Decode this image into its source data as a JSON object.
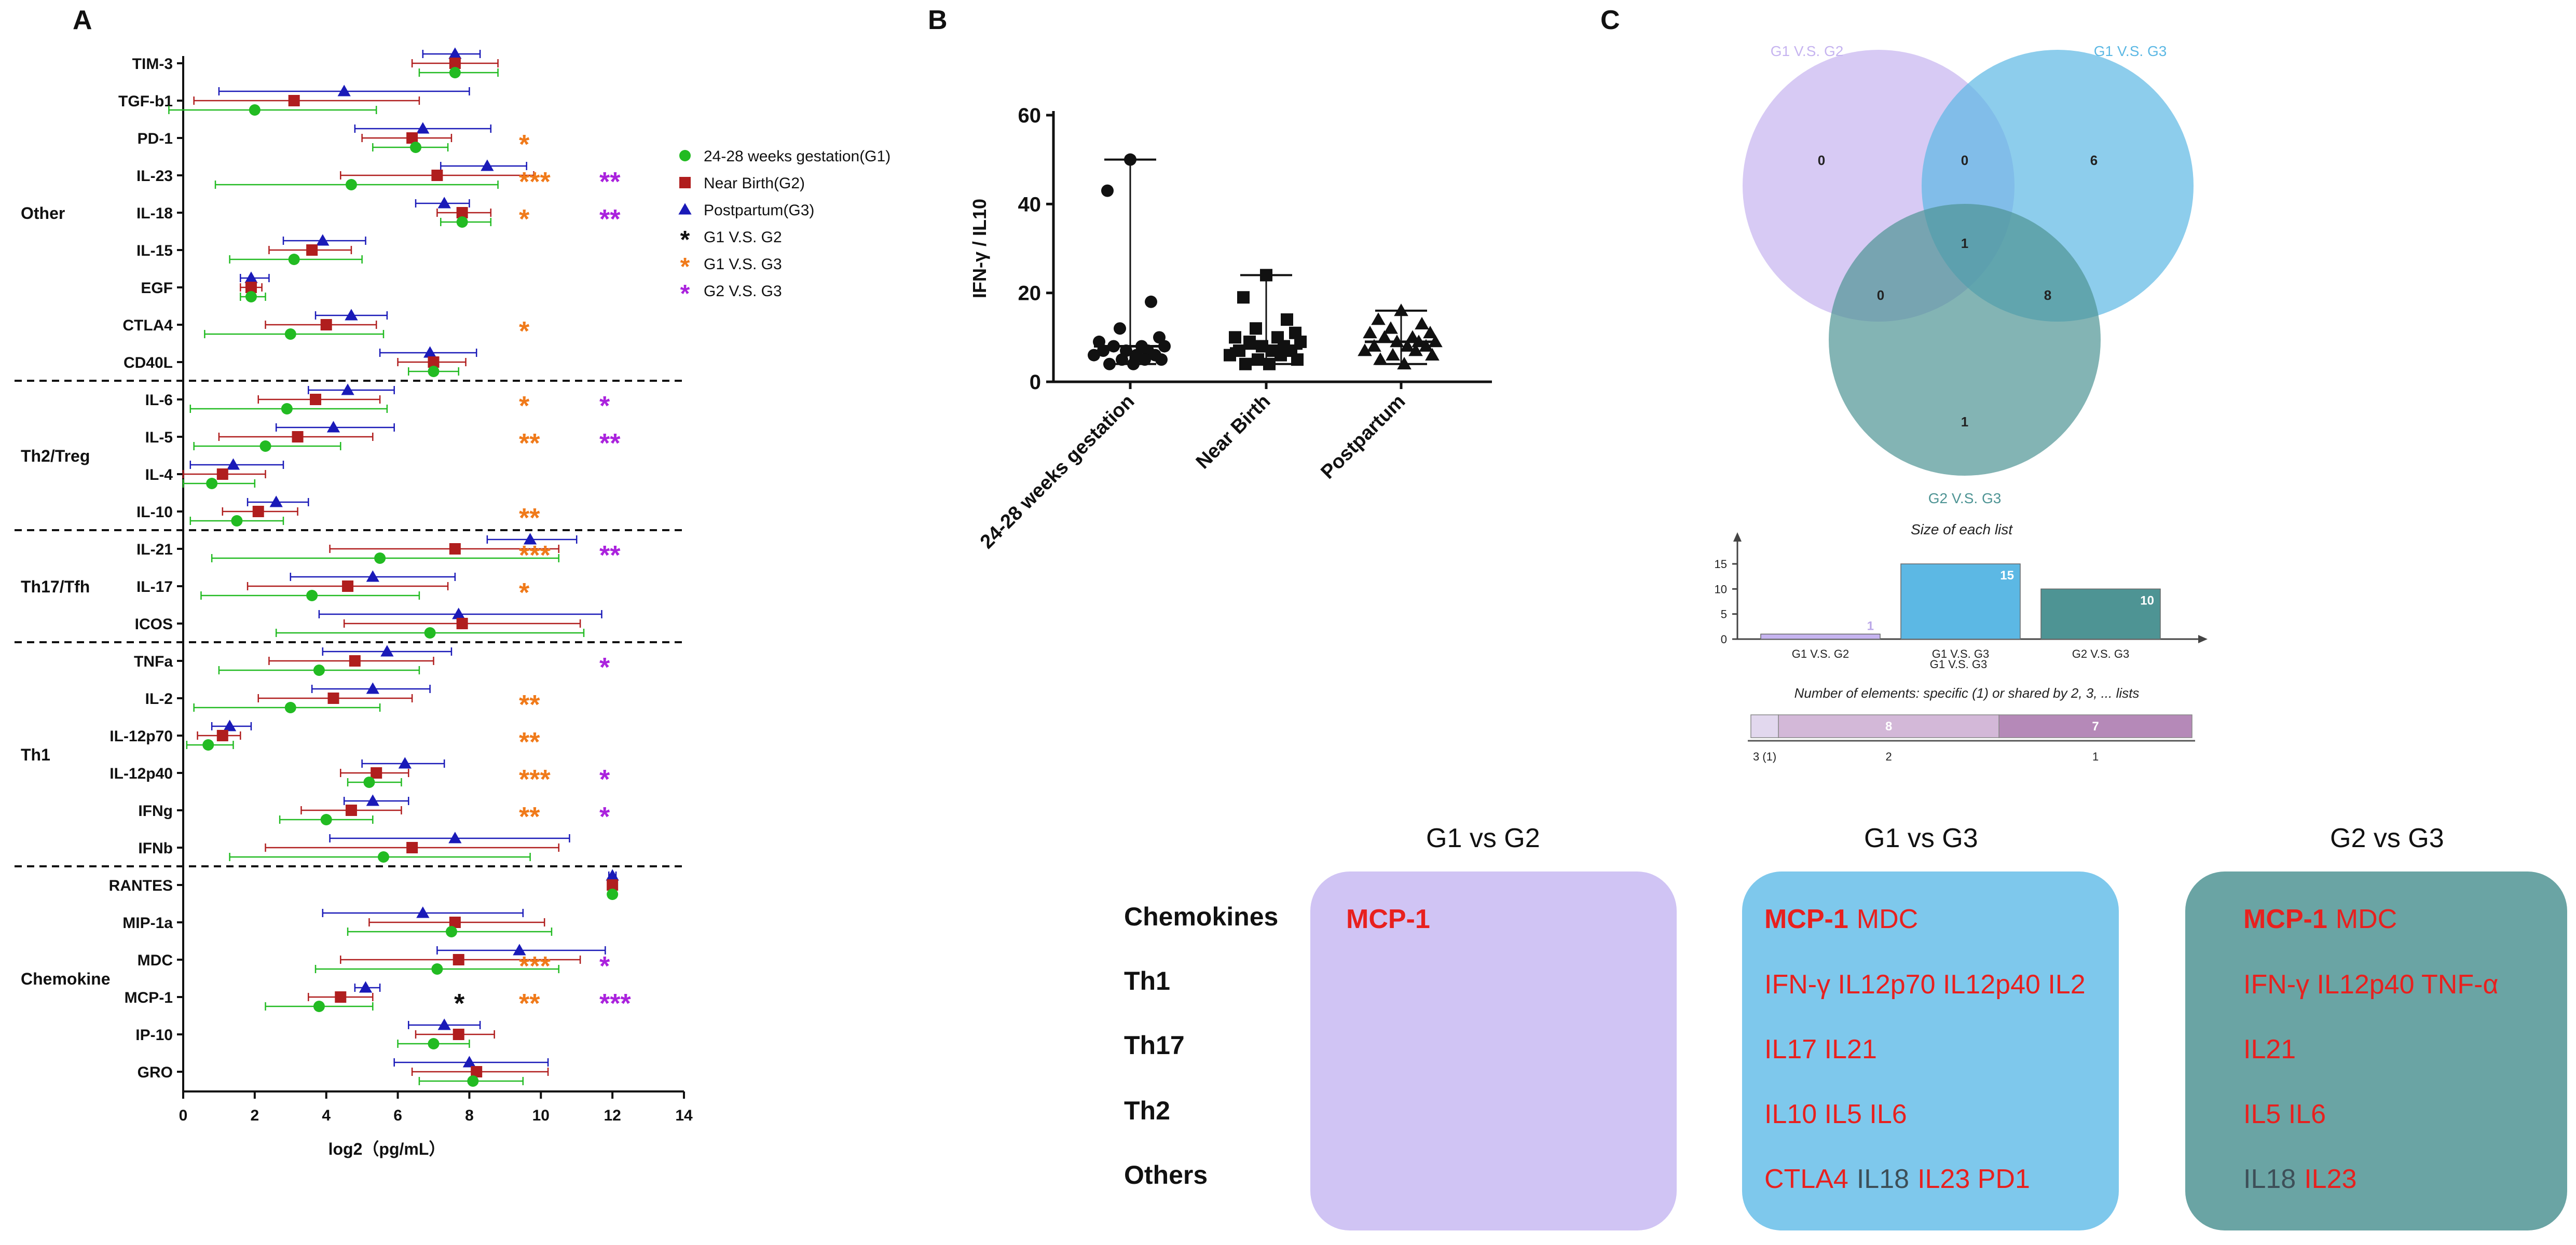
{
  "colors": {
    "g1": "#22bb22",
    "g2": "#b01e1e",
    "g3": "#1a1ab8",
    "star_g1g2": "#111111",
    "star_g1g3": "#f07a1a",
    "star_g2g3": "#aa22dd",
    "venn_g1g2": "#c6b4f0",
    "venn_g1g3": "#5cb8e4",
    "venn_g2g3": "#4e9494",
    "box_g1g2": "#d0c4f4",
    "box_g1g3": "#7ec8ec",
    "box_g2g3": "#6aa4a4",
    "red_text": "#e8201e",
    "grey_text": "#3d4f58"
  },
  "panelA": {
    "label": "A",
    "xlabel": "log2（pg/mL）",
    "xlim": [
      0,
      14
    ],
    "xticks": [
      0,
      2,
      4,
      6,
      8,
      10,
      12,
      14
    ],
    "legend": [
      {
        "marker": "circle",
        "label": "24-28 weeks gestation(G1)"
      },
      {
        "marker": "square",
        "label": "Near Birth(G2)"
      },
      {
        "marker": "triangle",
        "label": "Postpartum(G3)"
      },
      {
        "star": "*",
        "star_color": "star_g1g2",
        "label": "G1 V.S. G2"
      },
      {
        "star": "*",
        "star_color": "star_g1g3",
        "label": "G1 V.S. G3"
      },
      {
        "star": "*",
        "star_color": "star_g2g3",
        "label": "G2 V.S. G3"
      }
    ],
    "groups": [
      {
        "name": "Other",
        "start": 0,
        "end": 8
      },
      {
        "name": "Th2/Treg",
        "start": 9,
        "end": 12
      },
      {
        "name": "Th17/Tfh",
        "start": 13,
        "end": 15
      },
      {
        "name": "Th1",
        "start": 16,
        "end": 21
      },
      {
        "name": "Chemokine",
        "start": 22,
        "end": 27
      }
    ],
    "rows": [
      {
        "label": "TIM-3",
        "g1": [
          7.6,
          6.6,
          8.8
        ],
        "g2": [
          7.6,
          6.4,
          8.8
        ],
        "g3": [
          7.6,
          6.7,
          8.3
        ],
        "stars": []
      },
      {
        "label": "TGF-b1",
        "g1": [
          2.0,
          -0.4,
          5.4
        ],
        "g2": [
          3.1,
          0.3,
          6.6
        ],
        "g3": [
          4.5,
          1.0,
          8.0
        ],
        "stars": []
      },
      {
        "label": "PD-1",
        "g1": [
          6.5,
          5.3,
          7.4
        ],
        "g2": [
          6.4,
          5.0,
          7.5
        ],
        "g3": [
          6.7,
          4.8,
          8.6
        ],
        "stars": [
          {
            "text": "*",
            "group": "g1g3"
          }
        ]
      },
      {
        "label": "IL-23",
        "g1": [
          4.7,
          0.9,
          8.8
        ],
        "g2": [
          7.1,
          4.4,
          9.8
        ],
        "g3": [
          8.5,
          7.2,
          9.6
        ],
        "stars": [
          {
            "text": "***",
            "group": "g1g3"
          },
          {
            "text": "**",
            "group": "g2g3"
          }
        ]
      },
      {
        "label": "IL-18",
        "g1": [
          7.8,
          7.2,
          8.6
        ],
        "g2": [
          7.8,
          7.1,
          8.6
        ],
        "g3": [
          7.3,
          6.5,
          8.0
        ],
        "stars": [
          {
            "text": "*",
            "group": "g1g3"
          },
          {
            "text": "**",
            "group": "g2g3"
          }
        ]
      },
      {
        "label": "IL-15",
        "g1": [
          3.1,
          1.3,
          5.0
        ],
        "g2": [
          3.6,
          2.4,
          4.7
        ],
        "g3": [
          3.9,
          2.8,
          5.1
        ],
        "stars": []
      },
      {
        "label": "EGF",
        "g1": [
          1.9,
          1.6,
          2.3
        ],
        "g2": [
          1.9,
          1.6,
          2.2
        ],
        "g3": [
          1.9,
          1.6,
          2.4
        ],
        "stars": []
      },
      {
        "label": "CTLA4",
        "g1": [
          3.0,
          0.6,
          5.6
        ],
        "g2": [
          4.0,
          2.3,
          5.4
        ],
        "g3": [
          4.7,
          3.7,
          5.7
        ],
        "stars": [
          {
            "text": "*",
            "group": "g1g3"
          }
        ]
      },
      {
        "label": "CD40L",
        "g1": [
          7.0,
          6.3,
          7.7
        ],
        "g2": [
          7.0,
          6.0,
          7.9
        ],
        "g3": [
          6.9,
          5.5,
          8.2
        ],
        "stars": []
      },
      {
        "label": "IL-6",
        "g1": [
          2.9,
          0.2,
          5.7
        ],
        "g2": [
          3.7,
          2.1,
          5.5
        ],
        "g3": [
          4.6,
          3.5,
          5.9
        ],
        "stars": [
          {
            "text": "*",
            "group": "g1g3"
          },
          {
            "text": "*",
            "group": "g2g3"
          }
        ]
      },
      {
        "label": "IL-5",
        "g1": [
          2.3,
          0.3,
          4.4
        ],
        "g2": [
          3.2,
          1.0,
          5.3
        ],
        "g3": [
          4.2,
          2.6,
          5.9
        ],
        "stars": [
          {
            "text": "**",
            "group": "g1g3"
          },
          {
            "text": "**",
            "group": "g2g3"
          }
        ]
      },
      {
        "label": "IL-4",
        "g1": [
          0.8,
          0.0,
          2.0
        ],
        "g2": [
          1.1,
          0.0,
          2.3
        ],
        "g3": [
          1.4,
          0.2,
          2.8
        ],
        "stars": []
      },
      {
        "label": "IL-10",
        "g1": [
          1.5,
          0.2,
          2.8
        ],
        "g2": [
          2.1,
          1.1,
          3.2
        ],
        "g3": [
          2.6,
          1.8,
          3.5
        ],
        "stars": [
          {
            "text": "**",
            "group": "g1g3"
          }
        ]
      },
      {
        "label": "IL-21",
        "g1": [
          5.5,
          0.8,
          10.5
        ],
        "g2": [
          7.6,
          4.1,
          10.5
        ],
        "g3": [
          9.7,
          8.5,
          11.0
        ],
        "stars": [
          {
            "text": "***",
            "group": "g1g3"
          },
          {
            "text": "**",
            "group": "g2g3"
          }
        ]
      },
      {
        "label": "IL-17",
        "g1": [
          3.6,
          0.5,
          6.6
        ],
        "g2": [
          4.6,
          1.8,
          7.4
        ],
        "g3": [
          5.3,
          3.0,
          7.6
        ],
        "stars": [
          {
            "text": "*",
            "group": "g1g3"
          }
        ]
      },
      {
        "label": "ICOS",
        "g1": [
          6.9,
          2.6,
          11.2
        ],
        "g2": [
          7.8,
          4.5,
          11.1
        ],
        "g3": [
          7.7,
          3.8,
          11.7
        ],
        "stars": []
      },
      {
        "label": "TNFa",
        "g1": [
          3.8,
          1.0,
          6.6
        ],
        "g2": [
          4.8,
          2.4,
          7.0
        ],
        "g3": [
          5.7,
          3.9,
          7.5
        ],
        "stars": [
          {
            "text": "*",
            "group": "g2g3"
          }
        ]
      },
      {
        "label": "IL-2",
        "g1": [
          3.0,
          0.3,
          5.5
        ],
        "g2": [
          4.2,
          2.1,
          6.4
        ],
        "g3": [
          5.3,
          3.6,
          6.9
        ],
        "stars": [
          {
            "text": "**",
            "group": "g1g3"
          }
        ]
      },
      {
        "label": "IL-12p70",
        "g1": [
          0.7,
          0.1,
          1.4
        ],
        "g2": [
          1.1,
          0.4,
          1.6
        ],
        "g3": [
          1.3,
          0.8,
          1.9
        ],
        "stars": [
          {
            "text": "**",
            "group": "g1g3"
          }
        ]
      },
      {
        "label": "IL-12p40",
        "g1": [
          5.2,
          4.6,
          6.1
        ],
        "g2": [
          5.4,
          4.4,
          6.3
        ],
        "g3": [
          6.2,
          5.0,
          7.3
        ],
        "stars": [
          {
            "text": "***",
            "group": "g1g3"
          },
          {
            "text": "*",
            "group": "g2g3"
          }
        ]
      },
      {
        "label": "IFNg",
        "g1": [
          4.0,
          2.7,
          5.3
        ],
        "g2": [
          4.7,
          3.3,
          6.1
        ],
        "g3": [
          5.3,
          4.5,
          6.3
        ],
        "stars": [
          {
            "text": "**",
            "group": "g1g3"
          },
          {
            "text": "*",
            "group": "g2g3"
          }
        ]
      },
      {
        "label": "IFNb",
        "g1": [
          5.6,
          1.3,
          9.7
        ],
        "g2": [
          6.4,
          2.3,
          10.5
        ],
        "g3": [
          7.6,
          4.1,
          10.8
        ],
        "stars": []
      },
      {
        "label": "RANTES",
        "g1": [
          12.0,
          11.9,
          12.1
        ],
        "g2": [
          12.0,
          11.9,
          12.1
        ],
        "g3": [
          12.0,
          11.9,
          12.1
        ],
        "stars": []
      },
      {
        "label": "MIP-1a",
        "g1": [
          7.5,
          4.6,
          10.3
        ],
        "g2": [
          7.6,
          5.2,
          10.1
        ],
        "g3": [
          6.7,
          3.9,
          9.5
        ],
        "stars": []
      },
      {
        "label": "MDC",
        "g1": [
          7.1,
          3.7,
          10.5
        ],
        "g2": [
          7.7,
          4.4,
          11.1
        ],
        "g3": [
          9.4,
          7.1,
          11.8
        ],
        "stars": [
          {
            "text": "***",
            "group": "g1g3"
          },
          {
            "text": "*",
            "group": "g2g3"
          }
        ]
      },
      {
        "label": "MCP-1",
        "g1": [
          3.8,
          2.3,
          5.3
        ],
        "g2": [
          4.4,
          3.5,
          5.3
        ],
        "g3": [
          5.1,
          4.8,
          5.5
        ],
        "stars": [
          {
            "text": "*",
            "group": "g1g2"
          },
          {
            "text": "**",
            "group": "g1g3"
          },
          {
            "text": "***",
            "group": "g2g3"
          }
        ]
      },
      {
        "label": "IP-10",
        "g1": [
          7.0,
          6.0,
          8.0
        ],
        "g2": [
          7.7,
          6.5,
          8.7
        ],
        "g3": [
          7.3,
          6.3,
          8.3
        ],
        "stars": []
      },
      {
        "label": "GRO",
        "g1": [
          8.1,
          6.6,
          9.5
        ],
        "g2": [
          8.2,
          6.4,
          10.2
        ],
        "g3": [
          8.0,
          5.9,
          10.2
        ],
        "stars": []
      }
    ]
  },
  "panelB": {
    "label": "B",
    "ylabel": "IFN-γ / IL10",
    "ylim": [
      0,
      60
    ],
    "yticks": [
      0,
      20,
      40,
      60
    ],
    "groups": [
      {
        "name": "24-28 weeks gestation",
        "marker": "circle",
        "median": 8,
        "min": 4,
        "max": 50,
        "points": [
          50,
          43,
          18,
          12,
          10,
          9,
          8,
          8,
          8,
          7,
          7,
          7,
          6,
          6,
          6,
          5,
          5,
          5,
          4,
          4
        ]
      },
      {
        "name": "Near Birth",
        "marker": "square",
        "median": 7.5,
        "min": 4,
        "max": 24,
        "points": [
          24,
          19,
          14,
          12,
          11,
          10,
          10,
          9,
          9,
          8,
          8,
          7,
          7,
          7,
          6,
          6,
          5,
          5,
          4,
          4
        ]
      },
      {
        "name": "Postpartum",
        "marker": "triangle",
        "median": 9,
        "min": 4,
        "max": 16,
        "points": [
          16,
          14,
          13,
          12,
          11,
          11,
          10,
          10,
          9,
          9,
          9,
          8,
          8,
          8,
          7,
          7,
          6,
          6,
          5,
          4
        ]
      }
    ]
  },
  "panelC": {
    "label": "C",
    "venn": {
      "sets": [
        {
          "name": "G1 V.S. G2",
          "color": "venn_g1g2"
        },
        {
          "name": "G1 V.S. G3",
          "color": "venn_g1g3"
        },
        {
          "name": "G2 V.S. G3",
          "color": "venn_g2g3"
        }
      ],
      "counts": {
        "only_g1g2": 0,
        "g1g2_and_g1g3": 0,
        "only_g1g3": 6,
        "all_three": 1,
        "g1g2_and_g2g3": 0,
        "g1g3_and_g2g3": 8,
        "only_g2g3": 1
      }
    },
    "size_chart": {
      "title": "Size of each list",
      "yticks": [
        0,
        5,
        10,
        15
      ],
      "bars": [
        {
          "name": "G1 V.S. G2",
          "value": 1,
          "color": "venn_g1g2"
        },
        {
          "name": "G1 V.S. G3",
          "value": 15,
          "color": "venn_g1g3"
        },
        {
          "name": "G2 V.S. G3",
          "value": 10,
          "color": "venn_g2g3"
        }
      ]
    },
    "shared_chart": {
      "title": "Number of elements: specific (1) or shared by 2, 3, ... lists",
      "segments": [
        {
          "label": "3 (1)",
          "value": 1,
          "color": "#e2d8ee"
        },
        {
          "label": "2",
          "value": 8,
          "color": "#d3b8d8"
        },
        {
          "label": "1",
          "value": 7,
          "color": "#b589b8"
        }
      ]
    }
  },
  "comparison": {
    "columns": [
      "G1 vs G2",
      "G1 vs G3",
      "G2 vs G3"
    ],
    "rows": [
      "Chemokines",
      "Th1",
      "Th17",
      "Th2",
      "Others"
    ],
    "boxes": [
      {
        "lines": [
          [
            {
              "t": "MCP-1",
              "c": "red",
              "b": true
            }
          ],
          [],
          [],
          [],
          []
        ]
      },
      {
        "lines": [
          [
            {
              "t": "MCP-1",
              "c": "red",
              "b": true
            },
            {
              "t": "MDC",
              "c": "red",
              "b": false
            }
          ],
          [
            {
              "t": "IFN-γ IL12p70 IL12p40 IL2",
              "c": "red",
              "b": false
            }
          ],
          [
            {
              "t": "IL17 IL21",
              "c": "red",
              "b": false
            }
          ],
          [
            {
              "t": "IL10 IL5 IL6",
              "c": "red",
              "b": false
            }
          ],
          [
            {
              "t": "CTLA4",
              "c": "red",
              "b": false
            },
            {
              "t": "IL18",
              "c": "grey",
              "b": false
            },
            {
              "t": "IL23 PD1",
              "c": "red",
              "b": false
            }
          ]
        ]
      },
      {
        "lines": [
          [
            {
              "t": "MCP-1",
              "c": "red",
              "b": true
            },
            {
              "t": "MDC",
              "c": "red",
              "b": false
            }
          ],
          [
            {
              "t": "IFN-γ IL12p40 TNF-α",
              "c": "red",
              "b": false
            }
          ],
          [
            {
              "t": "IL21",
              "c": "red",
              "b": false
            }
          ],
          [
            {
              "t": "IL5 IL6",
              "c": "red",
              "b": false
            }
          ],
          [
            {
              "t": "IL18",
              "c": "grey",
              "b": false
            },
            {
              "t": "IL23",
              "c": "red",
              "b": false
            }
          ]
        ]
      }
    ]
  }
}
